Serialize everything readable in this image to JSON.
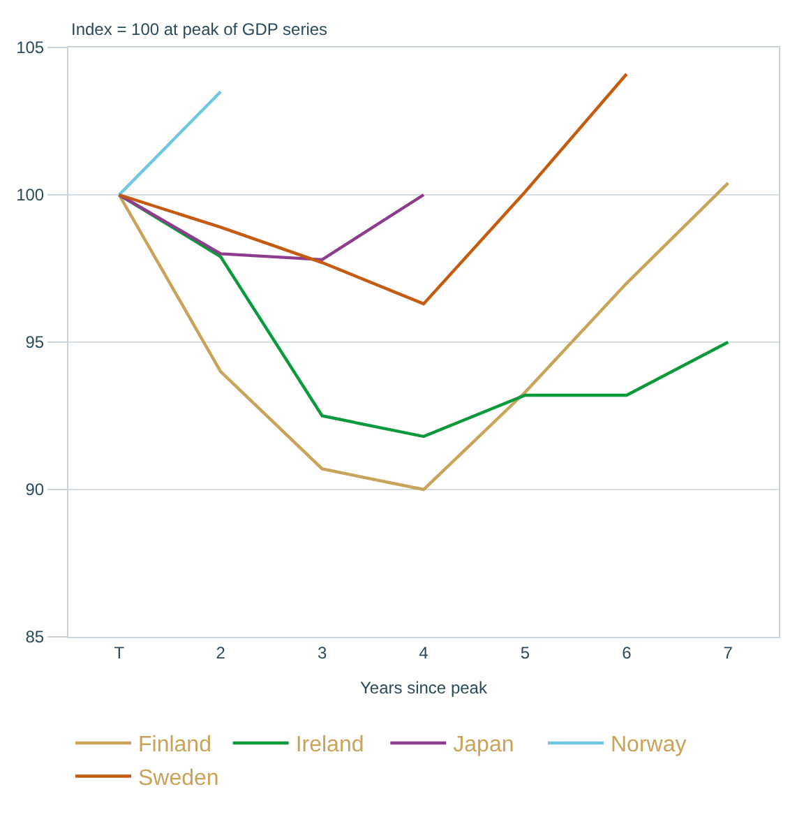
{
  "chart_data": {
    "type": "line",
    "ylabel": "Index = 100 at peak of GDP series",
    "xlabel": "Years since peak",
    "categories": [
      "T",
      "2",
      "3",
      "4",
      "5",
      "6",
      "7"
    ],
    "series": [
      {
        "name": "Finland",
        "color": "#c9a35a",
        "values": [
          100,
          94.0,
          90.7,
          90.0,
          93.3,
          97.0,
          100.4
        ]
      },
      {
        "name": "Ireland",
        "color": "#0a9a3c",
        "values": [
          100,
          97.9,
          92.5,
          91.8,
          93.2,
          93.2,
          95.0
        ]
      },
      {
        "name": "Japan",
        "color": "#8e3c8e",
        "values": [
          100,
          98.0,
          97.8,
          100.0,
          null,
          null,
          null
        ]
      },
      {
        "name": "Norway",
        "color": "#6ec6e0",
        "values": [
          100,
          103.5,
          null,
          null,
          null,
          null,
          null
        ]
      },
      {
        "name": "Sweden",
        "color": "#c55a11",
        "values": [
          100,
          98.9,
          97.7,
          96.3,
          100.1,
          104.1,
          null
        ]
      }
    ],
    "ylim": [
      85,
      105
    ],
    "yticks": [
      85,
      90,
      95,
      100,
      105
    ],
    "grid": "y",
    "legend": "bottom",
    "marker": "none",
    "line_style": "solid"
  }
}
